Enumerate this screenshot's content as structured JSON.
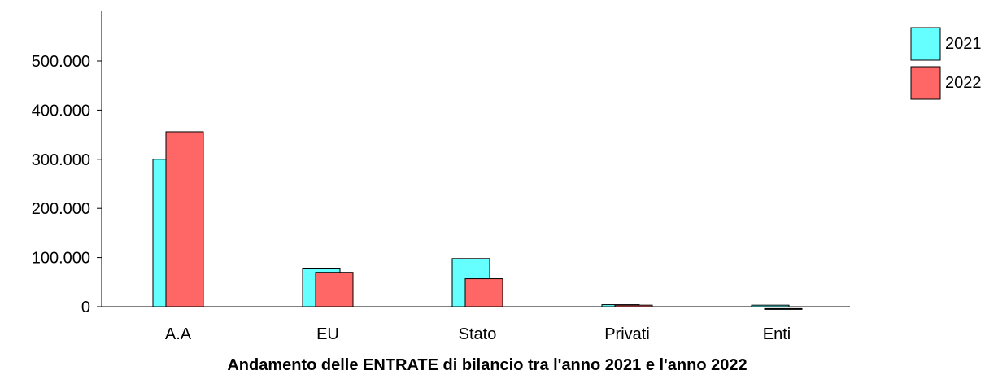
{
  "chart_data": {
    "type": "bar",
    "title": "Andamento delle ENTRATE di bilancio tra l'anno 2021 e l'anno 2022",
    "xlabel": "",
    "ylabel": "",
    "categories": [
      "A.A",
      "EU",
      "Stato",
      "Privati",
      "Enti"
    ],
    "series": [
      {
        "name": "2021",
        "color": "#66ffff",
        "values": [
          300000,
          77000,
          98000,
          4000,
          3000
        ]
      },
      {
        "name": "2022",
        "color": "#ff6666",
        "values": [
          361000,
          75000,
          62000,
          8000,
          1000
        ]
      }
    ],
    "ylim": [
      0,
      600000
    ],
    "yticks": [
      0,
      100000,
      200000,
      300000,
      400000,
      500000
    ],
    "ytick_labels": [
      "0",
      "100.000",
      "200.000",
      "300.000",
      "400.000",
      "500.000"
    ],
    "grid": false,
    "legend": "top-right"
  }
}
